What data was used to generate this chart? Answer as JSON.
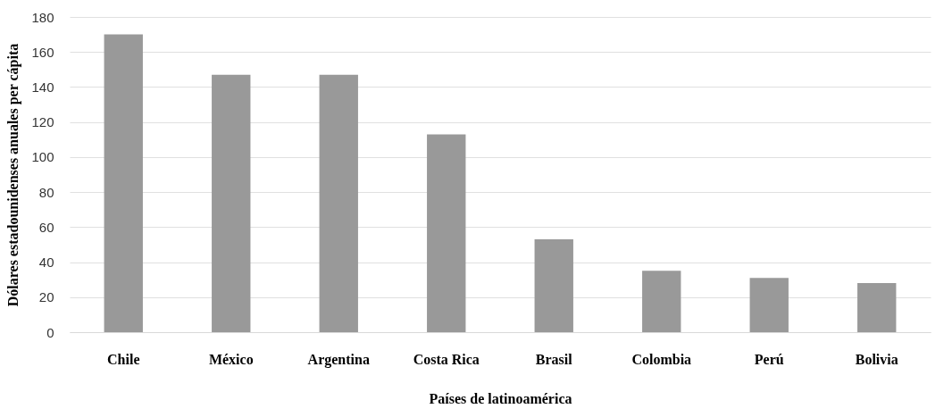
{
  "chart_data": {
    "type": "bar",
    "xlabel": "Países de latinoamérica",
    "ylabel": "Dólares estadounidenses anuales per cápita",
    "categories": [
      "Chile",
      "México",
      "Argentina",
      "Costa Rica",
      "Brasil",
      "Colombia",
      "Perú",
      "Bolivia"
    ],
    "values": [
      170,
      147,
      147,
      113,
      53,
      35,
      31,
      28
    ],
    "color": "#999999",
    "ylim": [
      0,
      180
    ],
    "yticks": [
      0,
      20,
      40,
      60,
      80,
      100,
      120,
      140,
      160,
      180
    ],
    "grid": "y"
  }
}
